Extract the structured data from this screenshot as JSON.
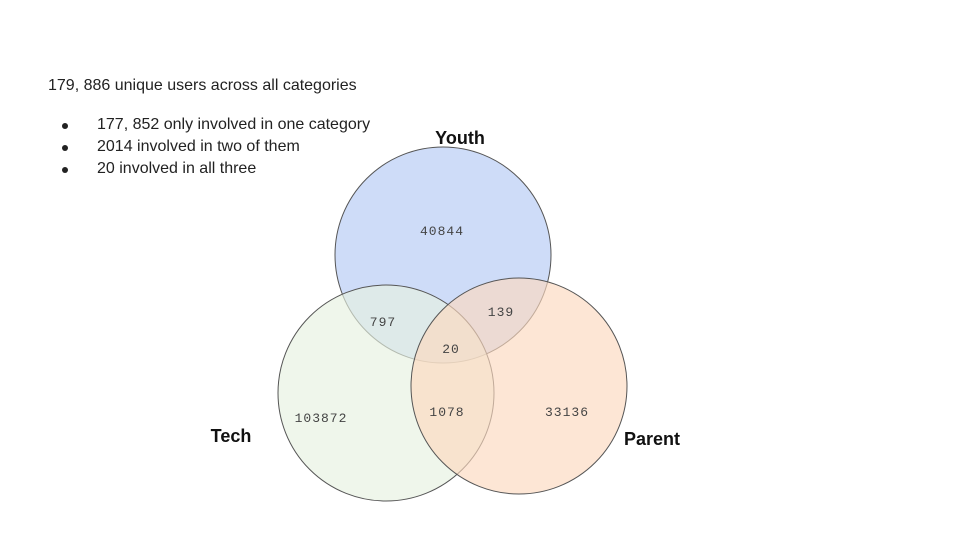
{
  "summary": {
    "headline": "179, 886 unique users across all categories",
    "bullets": [
      "177, 852 only involved in one category",
      "2014 involved in two of them",
      "20 involved in all three"
    ]
  },
  "venn": {
    "sets": [
      {
        "name": "Youth",
        "color": "#c5d6f7",
        "stroke": "#555555"
      },
      {
        "name": "Tech",
        "color": "#e6f1e1",
        "stroke": "#555555"
      },
      {
        "name": "Parent",
        "color": "#fcd9bf",
        "stroke": "#555555"
      }
    ],
    "regions": {
      "youth_only": "40844",
      "tech_only": "103872",
      "parent_only": "33136",
      "youth_tech": "797",
      "youth_parent": "139",
      "tech_parent": "1078",
      "all_three": "20"
    }
  }
}
